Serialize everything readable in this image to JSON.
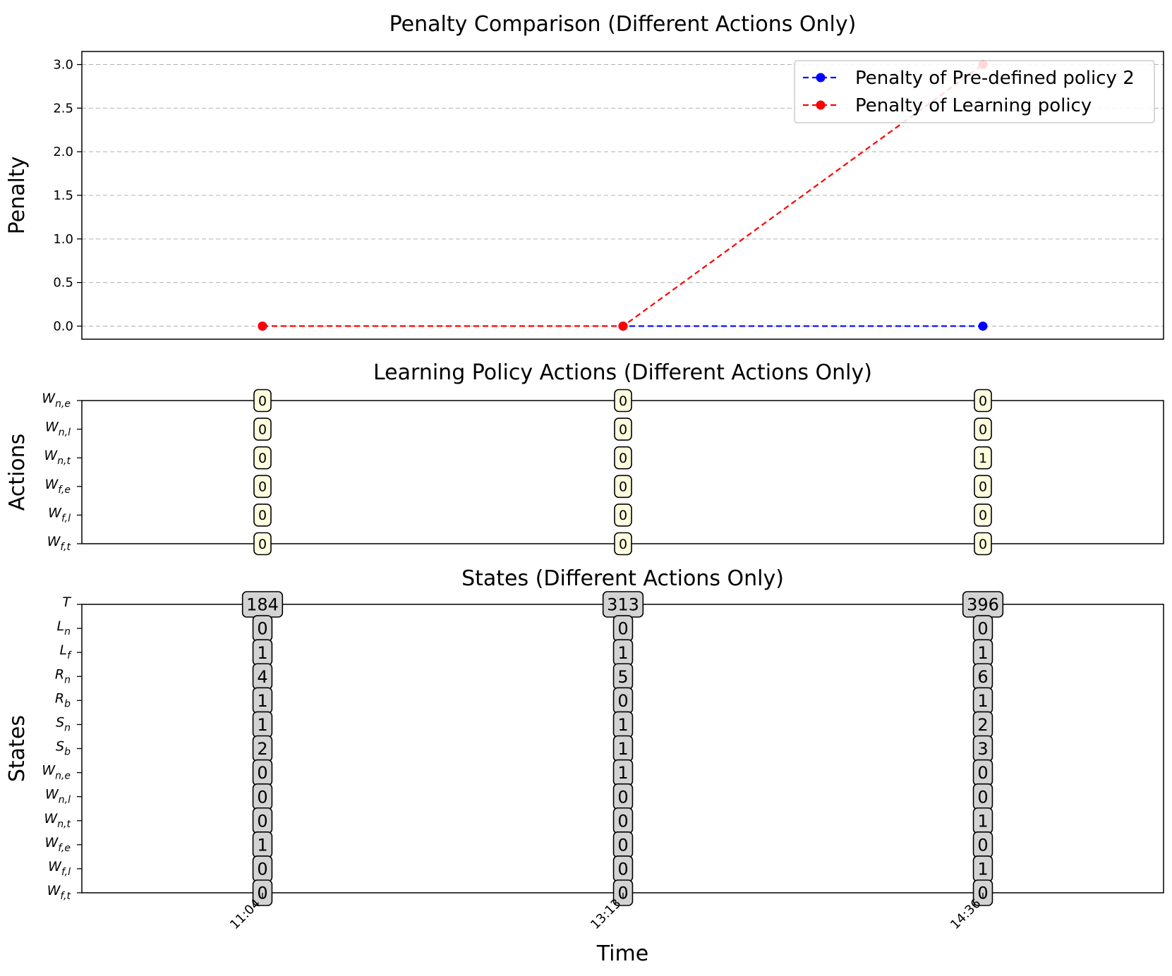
{
  "chart_data": [
    {
      "type": "line",
      "title": "Penalty Comparison (Different Actions Only)",
      "xlabel": "",
      "ylabel": "Penalty",
      "x": [
        "11:04",
        "13:13",
        "14:36"
      ],
      "ylim": [
        -0.15,
        3.15
      ],
      "yticks": [
        "0.0",
        "0.5",
        "1.0",
        "1.5",
        "2.0",
        "2.5",
        "3.0"
      ],
      "grid": "horizontal dashed",
      "legend_position": "top-right",
      "series": [
        {
          "name": "Penalty of Pre-defined policy 2",
          "values": [
            0,
            0,
            0
          ],
          "color": "#0000ff",
          "style": "dashed, circle markers"
        },
        {
          "name": "Penalty of Learning policy",
          "values": [
            0,
            0,
            3
          ],
          "color": "#ff0000",
          "style": "dashed, circle markers"
        }
      ]
    },
    {
      "type": "table",
      "title": "Learning Policy Actions (Different Actions Only)",
      "ylabel": "Actions",
      "x": [
        "11:04",
        "13:13",
        "14:36"
      ],
      "badge_color": "#ffffe0",
      "rows": [
        {
          "base": "W",
          "sub": "n,e",
          "values": [
            0,
            0,
            0
          ]
        },
        {
          "base": "W",
          "sub": "n,l",
          "values": [
            0,
            0,
            0
          ]
        },
        {
          "base": "W",
          "sub": "n,t",
          "values": [
            0,
            0,
            1
          ]
        },
        {
          "base": "W",
          "sub": "f,e",
          "values": [
            0,
            0,
            0
          ]
        },
        {
          "base": "W",
          "sub": "f,l",
          "values": [
            0,
            0,
            0
          ]
        },
        {
          "base": "W",
          "sub": "f,t",
          "values": [
            0,
            0,
            0
          ]
        }
      ]
    },
    {
      "type": "table",
      "title": "States (Different Actions Only)",
      "xlabel": "Time",
      "ylabel": "States",
      "x": [
        "11:04",
        "13:13",
        "14:36"
      ],
      "badge_color": "#d3d3d3",
      "rows": [
        {
          "base": "T",
          "sub": "",
          "values": [
            184,
            313,
            396
          ]
        },
        {
          "base": "L",
          "sub": "n",
          "values": [
            0,
            0,
            0
          ]
        },
        {
          "base": "L",
          "sub": "f",
          "values": [
            1,
            1,
            1
          ]
        },
        {
          "base": "R",
          "sub": "n",
          "values": [
            4,
            5,
            6
          ]
        },
        {
          "base": "R",
          "sub": "b",
          "values": [
            1,
            0,
            1
          ]
        },
        {
          "base": "S",
          "sub": "n",
          "values": [
            1,
            1,
            2
          ]
        },
        {
          "base": "S",
          "sub": "b",
          "values": [
            2,
            1,
            3
          ]
        },
        {
          "base": "W",
          "sub": "n,e",
          "values": [
            0,
            1,
            0
          ]
        },
        {
          "base": "W",
          "sub": "n,l",
          "values": [
            0,
            0,
            0
          ]
        },
        {
          "base": "W",
          "sub": "n,t",
          "values": [
            0,
            0,
            1
          ]
        },
        {
          "base": "W",
          "sub": "f,e",
          "values": [
            1,
            0,
            0
          ]
        },
        {
          "base": "W",
          "sub": "f,l",
          "values": [
            0,
            0,
            1
          ]
        },
        {
          "base": "W",
          "sub": "f,t",
          "values": [
            0,
            0,
            0
          ]
        }
      ]
    }
  ]
}
